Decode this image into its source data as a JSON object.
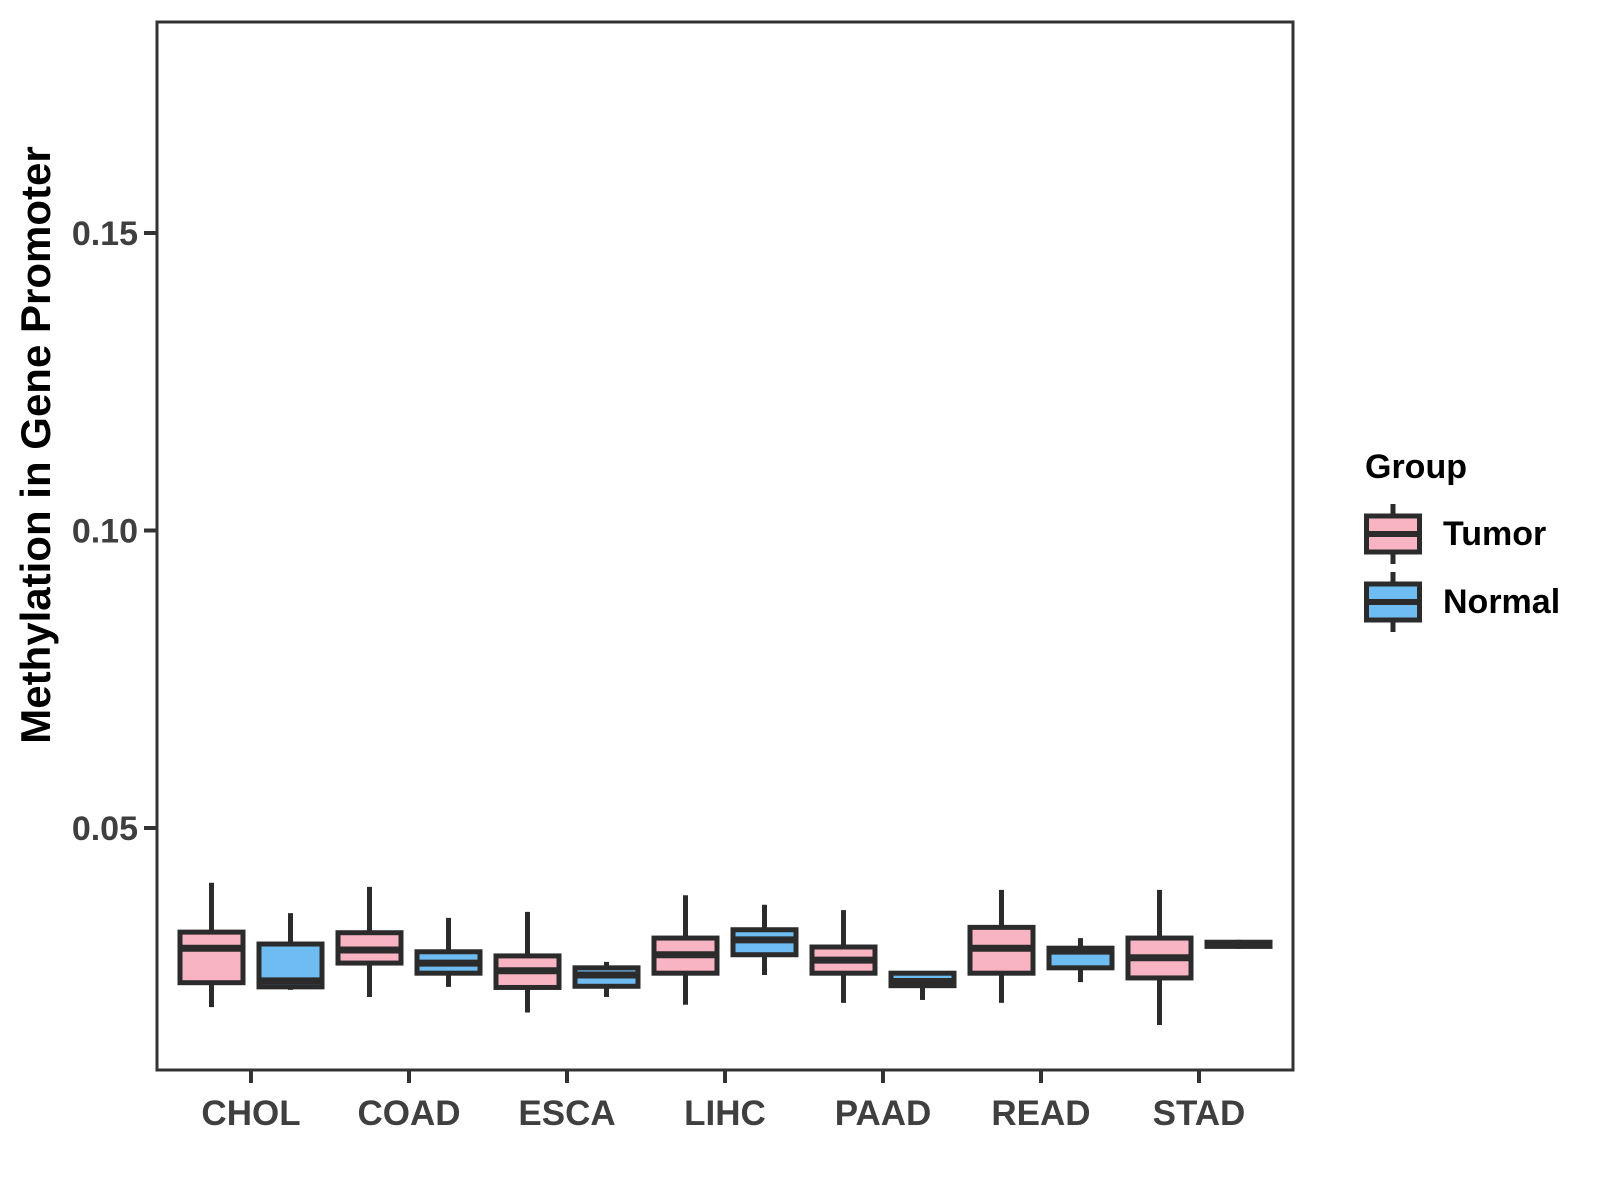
{
  "colors": {
    "tumor_fill": "#F9B4C4",
    "normal_fill": "#6FBCF2",
    "line": "#2B2B2B",
    "panel_border": "#333333",
    "axis_text": "#3F3F3F",
    "title_text": "#000000"
  },
  "legend": {
    "title": "Group",
    "position": "right",
    "entries": [
      {
        "label": "Tumor",
        "color": "#F9B4C4"
      },
      {
        "label": "Normal",
        "color": "#6FBCF2"
      }
    ]
  },
  "chart_data": {
    "type": "boxplot",
    "title": "",
    "xlabel": "",
    "ylabel": "Methylation in Gene Promoter",
    "categories": [
      "CHOL",
      "COAD",
      "ESCA",
      "LIHC",
      "PAAD",
      "READ",
      "STAD"
    ],
    "yticks": [
      0.05,
      0.1,
      0.15
    ],
    "ytick_labels": [
      "0.05",
      "0.10",
      "0.15"
    ],
    "ylim": [
      0.009,
      0.186
    ],
    "grid": false,
    "legend_position": "right",
    "series": [
      {
        "name": "Tumor",
        "color": "#F9B4C4",
        "boxes": [
          {
            "category": "CHOL",
            "whisker_low": 0.0199,
            "q1": 0.024,
            "median": 0.0298,
            "q3": 0.0325,
            "whisker_high": 0.0408
          },
          {
            "category": "COAD",
            "whisker_low": 0.0216,
            "q1": 0.0273,
            "median": 0.0295,
            "q3": 0.0324,
            "whisker_high": 0.0401
          },
          {
            "category": "ESCA",
            "whisker_low": 0.019,
            "q1": 0.0232,
            "median": 0.026,
            "q3": 0.0285,
            "whisker_high": 0.0359
          },
          {
            "category": "LIHC",
            "whisker_low": 0.0203,
            "q1": 0.0256,
            "median": 0.0287,
            "q3": 0.0315,
            "whisker_high": 0.0387
          },
          {
            "category": "PAAD",
            "whisker_low": 0.0206,
            "q1": 0.0256,
            "median": 0.0278,
            "q3": 0.03,
            "whisker_high": 0.0362
          },
          {
            "category": "READ",
            "whisker_low": 0.0206,
            "q1": 0.0256,
            "median": 0.0298,
            "q3": 0.0333,
            "whisker_high": 0.0396
          },
          {
            "category": "STAD",
            "whisker_low": 0.0169,
            "q1": 0.0248,
            "median": 0.0282,
            "q3": 0.0315,
            "whisker_high": 0.0396
          }
        ]
      },
      {
        "name": "Normal",
        "color": "#6FBCF2",
        "boxes": [
          {
            "category": "CHOL",
            "whisker_low": 0.0228,
            "q1": 0.0233,
            "median": 0.0243,
            "q3": 0.0305,
            "whisker_high": 0.0357
          },
          {
            "category": "COAD",
            "whisker_low": 0.0233,
            "q1": 0.0256,
            "median": 0.0273,
            "q3": 0.0292,
            "whisker_high": 0.0349
          },
          {
            "category": "ESCA",
            "whisker_low": 0.0216,
            "q1": 0.0234,
            "median": 0.0253,
            "q3": 0.0265,
            "whisker_high": 0.0275
          },
          {
            "category": "LIHC",
            "whisker_low": 0.0253,
            "q1": 0.0287,
            "median": 0.0312,
            "q3": 0.0329,
            "whisker_high": 0.0371
          },
          {
            "category": "PAAD",
            "whisker_low": 0.0211,
            "q1": 0.0235,
            "median": 0.0242,
            "q3": 0.0256,
            "whisker_high": 0.0258
          },
          {
            "category": "READ",
            "whisker_low": 0.0241,
            "q1": 0.0265,
            "median": 0.0293,
            "q3": 0.0298,
            "whisker_high": 0.0315
          },
          {
            "category": "STAD",
            "whisker_low": 0.0297,
            "q1": 0.0301,
            "median": 0.0305,
            "q3": 0.0308,
            "whisker_high": 0.0312
          }
        ]
      }
    ]
  }
}
